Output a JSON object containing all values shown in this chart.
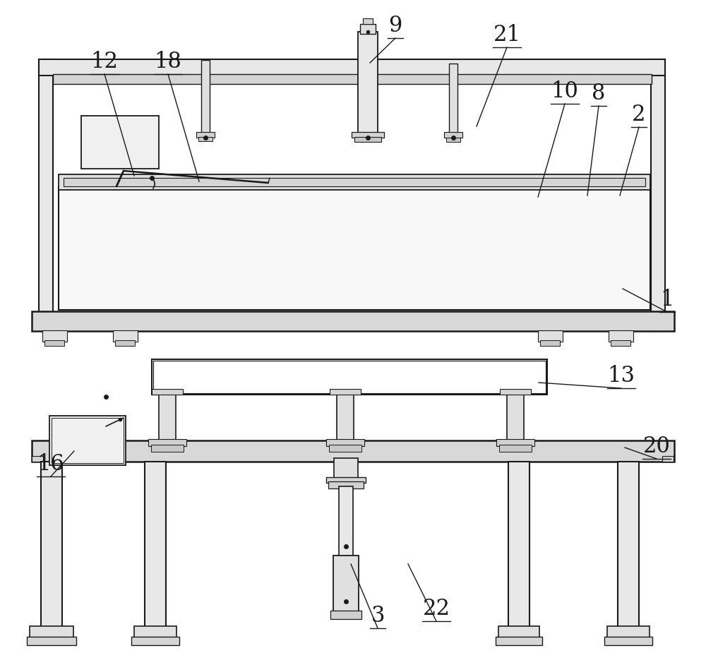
{
  "bg": "#ffffff",
  "lc": "#1a1a1a",
  "fc_white": "#f5f5f5",
  "fc_lgray": "#e0e0e0",
  "fc_mgray": "#c8c8c8",
  "fc_dgray": "#b0b0b0"
}
